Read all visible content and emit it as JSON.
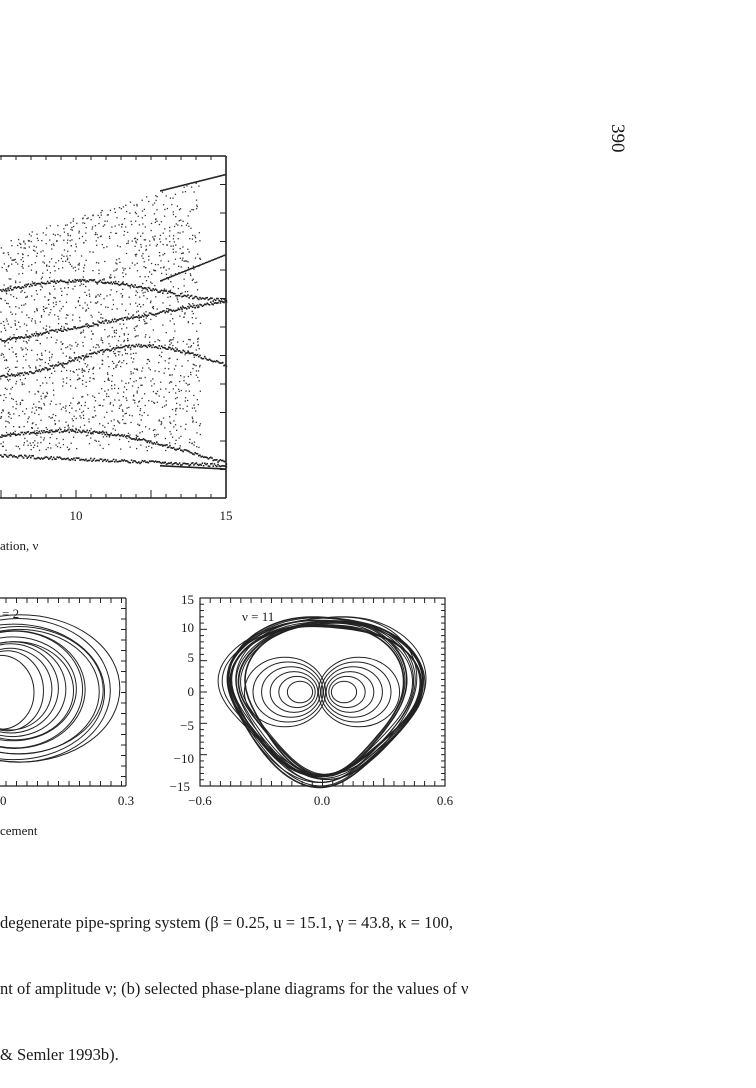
{
  "page_number": "390",
  "bifurcation_plot": {
    "x_ticks": [
      "10",
      "15"
    ],
    "x_label_fragment": "ation, ν"
  },
  "phase_plane_left": {
    "label_fragment": "= 2",
    "x_ticks": [
      "0",
      "0.3"
    ],
    "x_label_fragment": "cement"
  },
  "phase_plane_right": {
    "label": "ν = 11",
    "x_ticks": [
      "−0.6",
      "0.0",
      "0.6"
    ],
    "y_ticks": [
      "15",
      "10",
      "5",
      "0",
      "−5",
      "−10",
      "−15"
    ]
  },
  "caption_lines": [
    "degenerate pipe-spring system (β = 0.25, u = 15.1, γ = 43.8, κ = 100,",
    "nt of amplitude ν; (b) selected phase-plane diagrams for the values of ν",
    "& Semler 1993b)."
  ],
  "chart_data": [
    {
      "type": "scatter",
      "title": "",
      "xlabel": "ation, ν",
      "ylabel": "",
      "x_ticks": [
        10,
        15
      ],
      "xlim": [
        0,
        15
      ],
      "note": "bifurcation diagram, partially visible"
    },
    {
      "type": "line",
      "title": "",
      "annotation": "= 2",
      "xlabel": "cement",
      "x_ticks": [
        0.0,
        0.3
      ],
      "note": "phase-plane trajectory, partially visible"
    },
    {
      "type": "line",
      "title": "",
      "annotation": "ν = 11",
      "xlabel": "",
      "ylabel": "",
      "xlim": [
        -0.6,
        0.6
      ],
      "ylim": [
        -15,
        15
      ],
      "x_ticks": [
        -0.6,
        0.0,
        0.6
      ],
      "y_ticks": [
        15,
        10,
        5,
        0,
        -5,
        -10,
        -15
      ]
    }
  ]
}
